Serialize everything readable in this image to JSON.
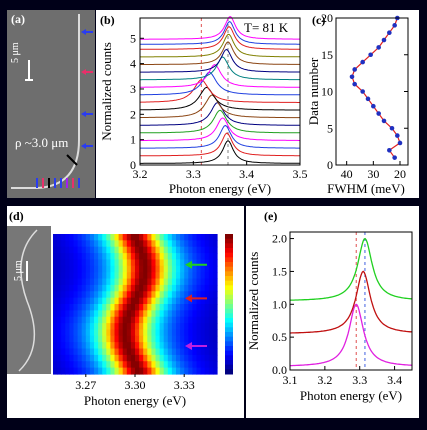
{
  "panel_a": {
    "label": "(a)",
    "scale": "5 μm",
    "radius_label": "ρ ~3.0 μm",
    "arrow_colors": [
      "#2a3cf0",
      "#e8306a",
      "#2a3cf0",
      "#2a3cf0",
      "#2a3cf0",
      "#e8306a",
      "#000000",
      "#2a3cf0",
      "#2a3cf0",
      "#a020f0",
      "#e8306a",
      "#2a3cf0"
    ]
  },
  "chart_data": [
    {
      "panel": "(b)",
      "type": "line",
      "annotation": "T= 81 K",
      "xlabel": "Photon energy (eV)",
      "ylabel": "Normalized counts",
      "xlim": [
        3.2,
        3.5
      ],
      "ylim": [
        0,
        5.8
      ],
      "xticks": [
        "3.2",
        "3.3",
        "3.4",
        "3.5"
      ],
      "yticks": [
        "0",
        "1",
        "2",
        "3",
        "4",
        "5"
      ],
      "dashed_lines_x": [
        3.315,
        3.365
      ],
      "dashed_colors": [
        "#e05050",
        "#808080"
      ],
      "series": [
        {
          "offset": 0.0,
          "peak": 3.365,
          "width": 0.024,
          "amp": 1.0,
          "color": "#000000"
        },
        {
          "offset": 0.3,
          "peak": 3.363,
          "width": 0.025,
          "amp": 1.0,
          "color": "#e02020"
        },
        {
          "offset": 0.6,
          "peak": 3.36,
          "width": 0.026,
          "amp": 1.0,
          "color": "#2040e0"
        },
        {
          "offset": 0.9,
          "peak": 3.355,
          "width": 0.028,
          "amp": 1.0,
          "color": "#ff00ff"
        },
        {
          "offset": 1.2,
          "peak": 3.35,
          "width": 0.03,
          "amp": 1.0,
          "color": "#20a020"
        },
        {
          "offset": 1.5,
          "peak": 3.345,
          "width": 0.03,
          "amp": 1.0,
          "color": "#000080"
        },
        {
          "offset": 1.8,
          "peak": 3.335,
          "width": 0.032,
          "amp": 1.0,
          "color": "#8b4513"
        },
        {
          "offset": 2.1,
          "peak": 3.325,
          "width": 0.034,
          "amp": 1.0,
          "color": "#000000"
        },
        {
          "offset": 2.4,
          "peak": 3.315,
          "width": 0.034,
          "amp": 1.0,
          "color": "#e02020"
        },
        {
          "offset": 2.7,
          "peak": 3.33,
          "width": 0.032,
          "amp": 1.0,
          "color": "#2040e0"
        },
        {
          "offset": 3.0,
          "peak": 3.34,
          "width": 0.03,
          "amp": 1.0,
          "color": "#ff00ff"
        },
        {
          "offset": 3.3,
          "peak": 3.355,
          "width": 0.028,
          "amp": 1.0,
          "color": "#008080"
        },
        {
          "offset": 3.6,
          "peak": 3.362,
          "width": 0.026,
          "amp": 1.0,
          "color": "#000080"
        },
        {
          "offset": 3.9,
          "peak": 3.365,
          "width": 0.025,
          "amp": 1.0,
          "color": "#8b4513"
        },
        {
          "offset": 4.2,
          "peak": 3.366,
          "width": 0.025,
          "amp": 1.0,
          "color": "#808000"
        },
        {
          "offset": 4.5,
          "peak": 3.367,
          "width": 0.025,
          "amp": 1.0,
          "color": "#e02020"
        },
        {
          "offset": 4.7,
          "peak": 3.368,
          "width": 0.024,
          "amp": 1.0,
          "color": "#2040e0"
        },
        {
          "offset": 4.9,
          "peak": 3.369,
          "width": 0.024,
          "amp": 1.0,
          "color": "#ff00ff"
        }
      ]
    },
    {
      "panel": "(c)",
      "type": "line",
      "xlabel": "FWHM (meV)",
      "ylabel": "Data number",
      "xlim": [
        44,
        17
      ],
      "ylim": [
        0,
        20
      ],
      "xticks": [
        "40",
        "30",
        "20"
      ],
      "yticks": [
        "0",
        "5",
        "10",
        "15",
        "20"
      ],
      "color": "#e02020",
      "marker_color": "#2030c0",
      "x": [
        22,
        24,
        20,
        21,
        23,
        26,
        28,
        30,
        32,
        34,
        37,
        38,
        37,
        34,
        31,
        28,
        26,
        24,
        22,
        21
      ],
      "y": [
        1,
        2,
        3,
        4,
        5,
        6,
        7,
        8,
        9,
        10,
        11,
        12,
        13,
        14,
        15,
        16,
        17,
        18,
        19,
        20
      ]
    },
    {
      "panel": "(d)",
      "type": "heatmap",
      "xlabel": "Photon energy (eV)",
      "xlim": [
        3.25,
        3.35
      ],
      "xticks": [
        "3.27",
        "3.30",
        "3.33"
      ],
      "arrows": [
        {
          "row_frac": 0.22,
          "color": "#20d020"
        },
        {
          "row_frac": 0.46,
          "color": "#e02020"
        },
        {
          "row_frac": 0.8,
          "color": "#c020e0"
        }
      ]
    },
    {
      "panel": "(e)",
      "type": "line",
      "xlabel": "Photon energy (eV)",
      "ylabel": "Normalized counts",
      "xlim": [
        3.1,
        3.45
      ],
      "ylim": [
        0,
        2.1
      ],
      "xticks": [
        "3.1",
        "3.2",
        "3.3",
        "3.4"
      ],
      "yticks": [
        "0.0",
        "0.5",
        "1.0",
        "1.5",
        "2.0"
      ],
      "dashed_lines_x": [
        3.29,
        3.315
      ],
      "dashed_colors": [
        "#e05050",
        "#4060e0"
      ],
      "series": [
        {
          "offset": 0.0,
          "peak": 3.29,
          "width": 0.05,
          "amp": 1.0,
          "color": "#e020e0"
        },
        {
          "offset": 0.5,
          "peak": 3.31,
          "width": 0.05,
          "amp": 1.0,
          "color": "#c01010"
        },
        {
          "offset": 1.0,
          "peak": 3.315,
          "width": 0.05,
          "amp": 1.0,
          "color": "#20d020"
        }
      ]
    }
  ]
}
